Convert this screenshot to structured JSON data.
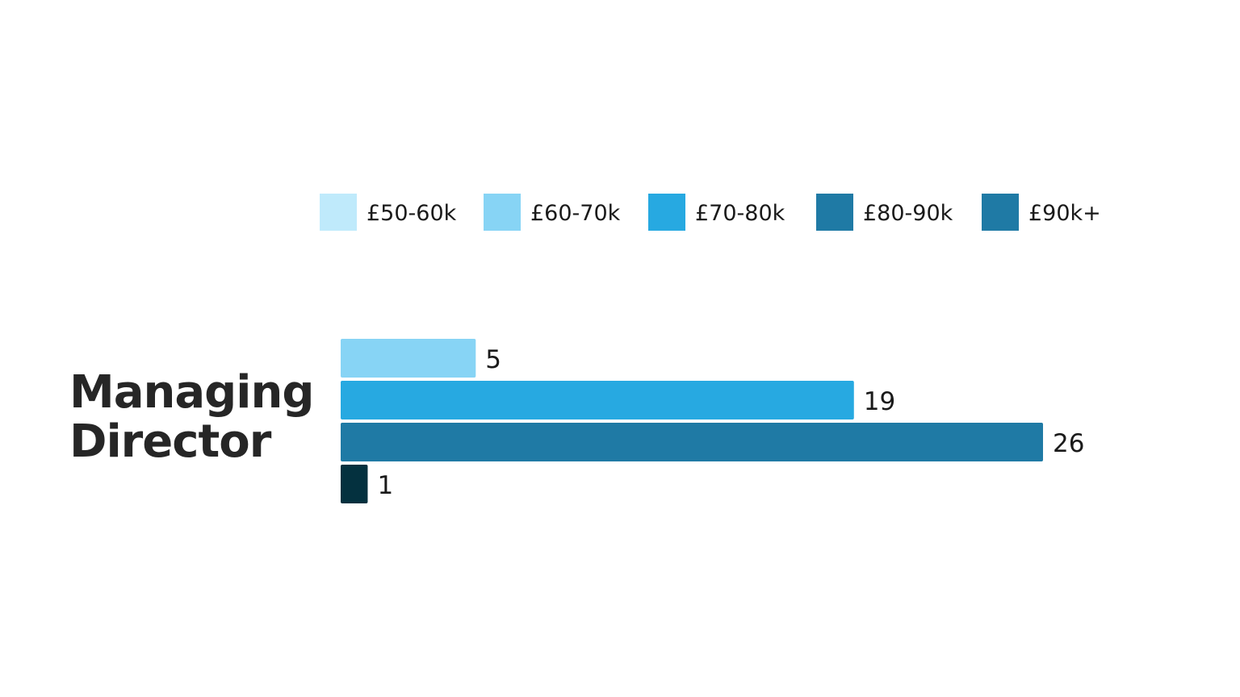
{
  "chart_data": {
    "type": "bar",
    "orientation": "horizontal",
    "categories": [
      "Managing Director"
    ],
    "category_label_lines": [
      "Managing",
      "Director"
    ],
    "series": [
      {
        "name": "£50-60k",
        "color": "#BFEAFB",
        "values": [
          null
        ]
      },
      {
        "name": "£60-70k",
        "color": "#87D4F5",
        "values": [
          5
        ]
      },
      {
        "name": "£70-80k",
        "color": "#27A9E1",
        "values": [
          19
        ]
      },
      {
        "name": "£80-90k",
        "color": "#1F7AA5",
        "values": [
          26
        ]
      },
      {
        "name": "£90k+",
        "color": "#1F7AA5",
        "values": [
          null
        ]
      }
    ],
    "extra_bars": [
      {
        "color": "#04313F",
        "value": 1
      }
    ],
    "legend_position": "top",
    "grid": false,
    "xlim": [
      0,
      26
    ]
  }
}
